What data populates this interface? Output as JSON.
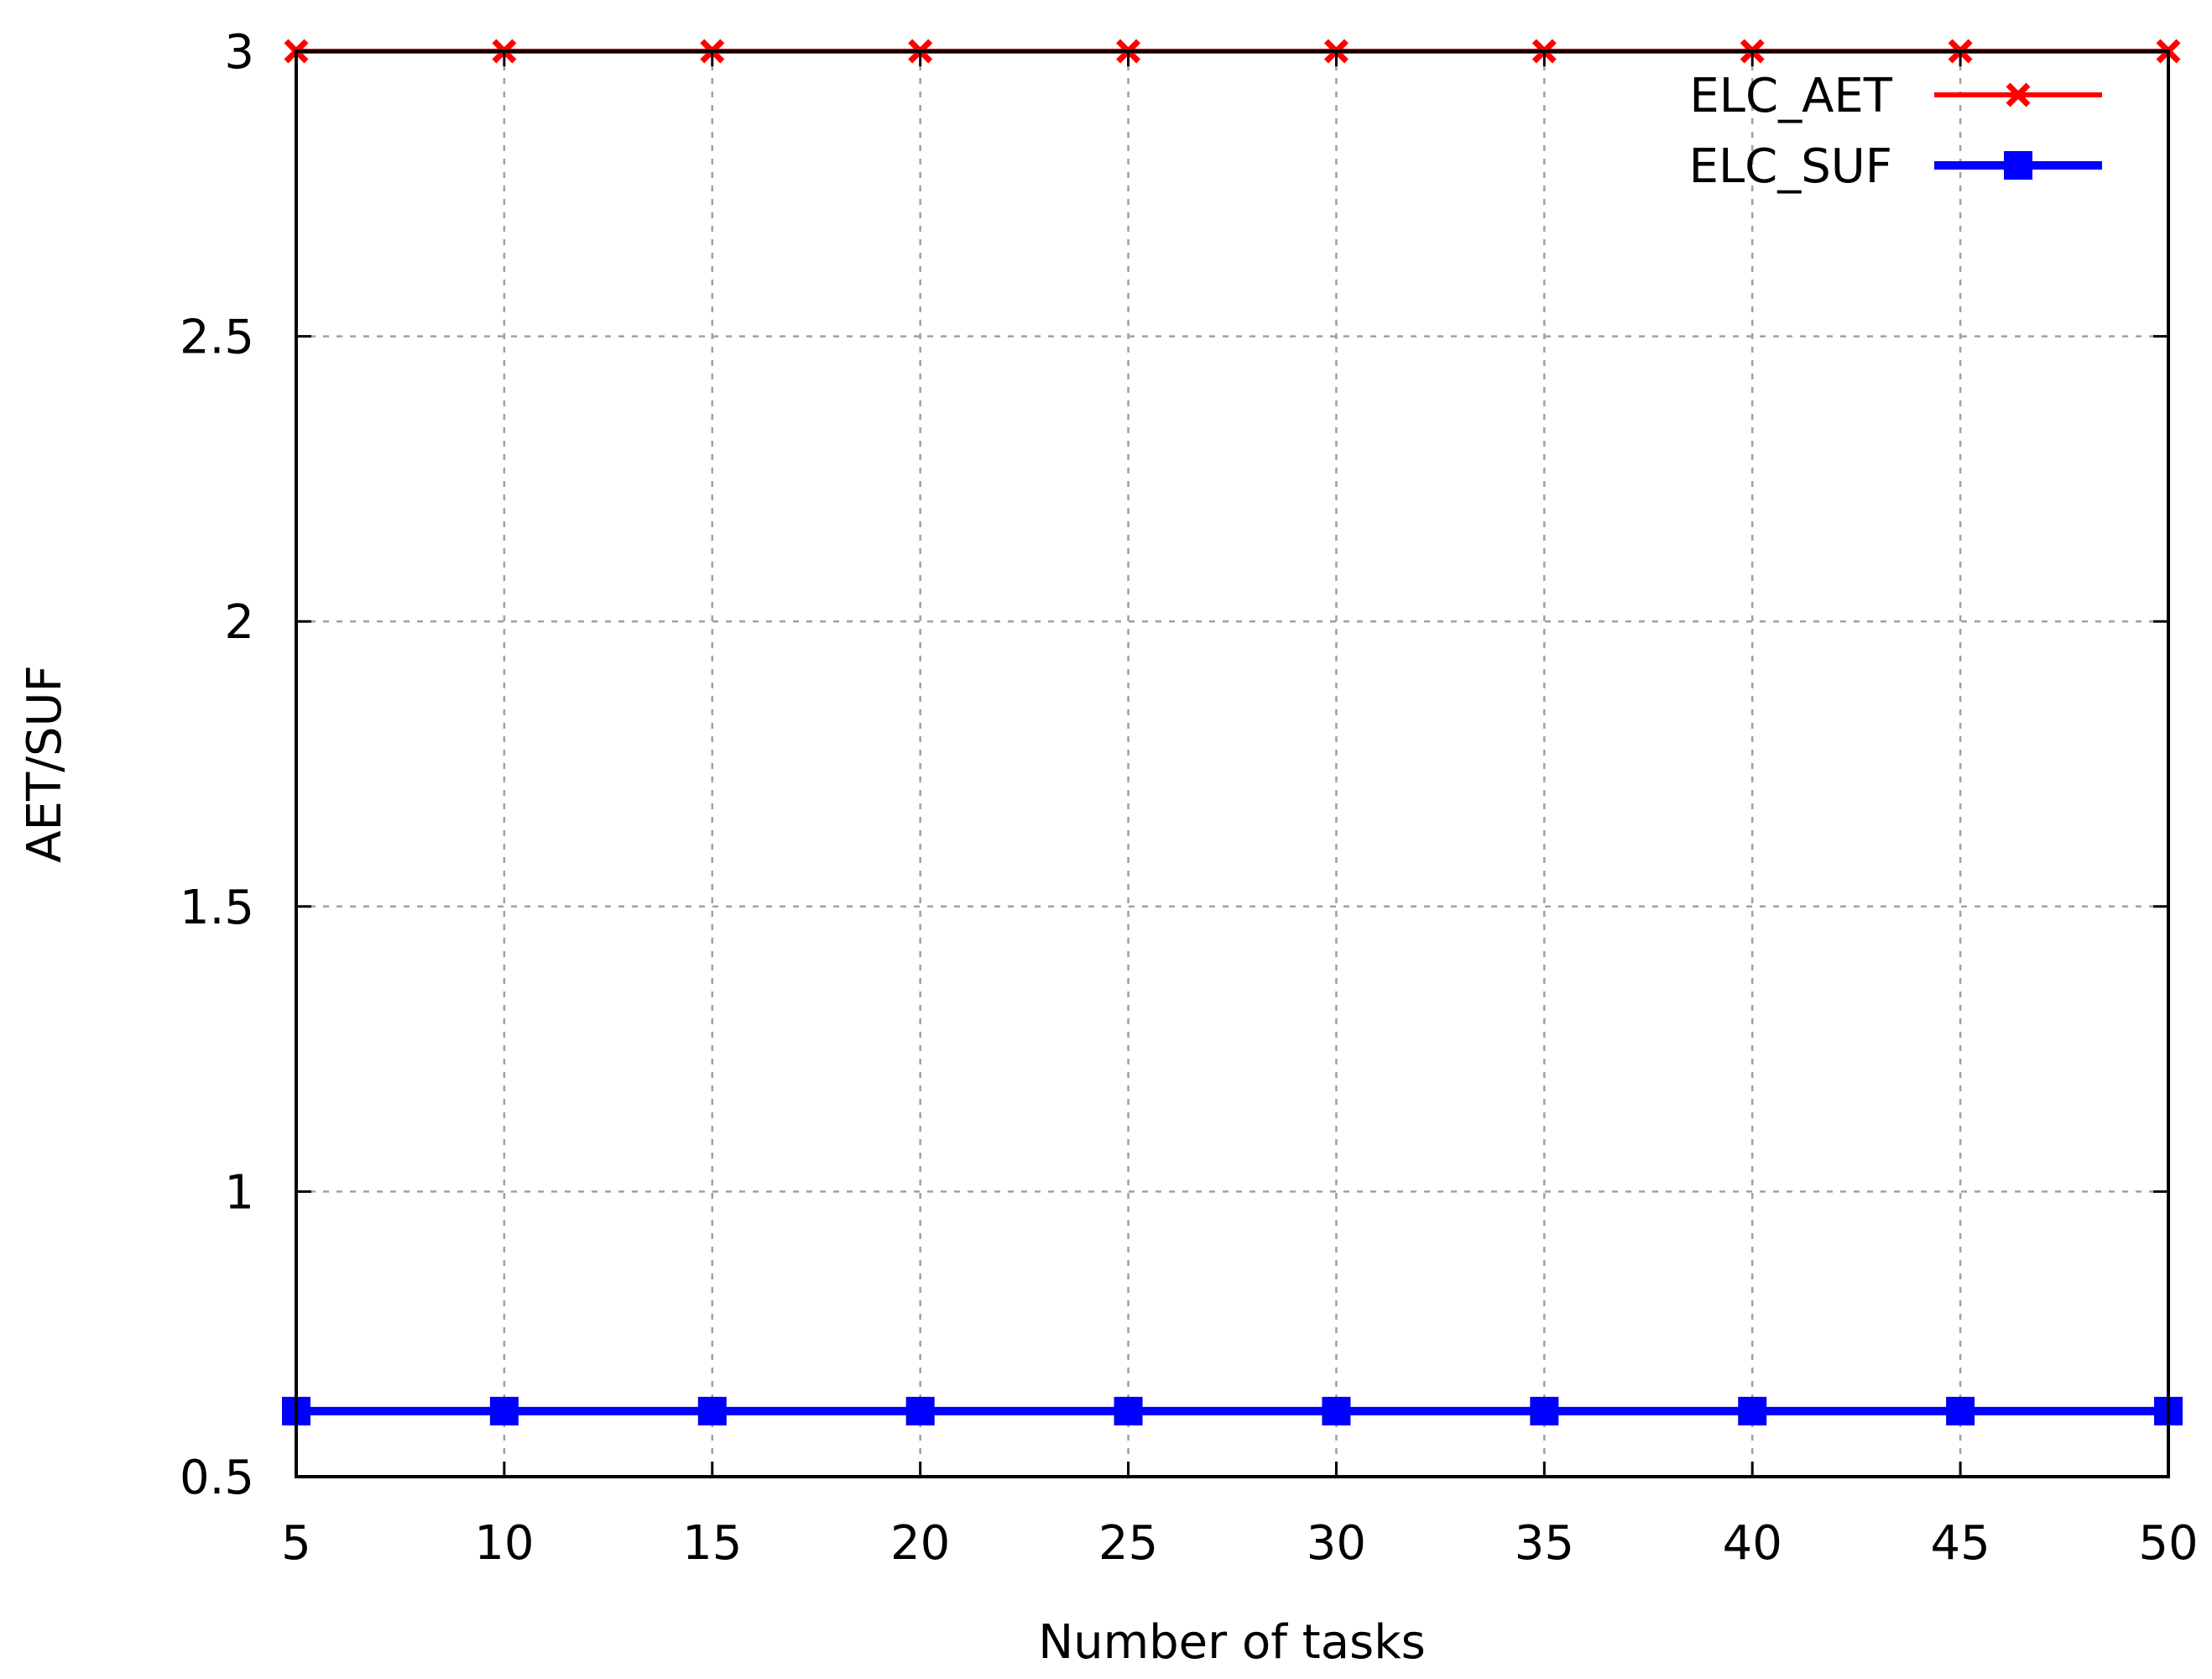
{
  "chart_data": {
    "type": "line",
    "title": "",
    "xlabel": "Number of tasks",
    "ylabel": "AET/SUF",
    "x": [
      5,
      10,
      15,
      20,
      25,
      30,
      35,
      40,
      45,
      50
    ],
    "xlim": [
      5,
      50
    ],
    "ylim": [
      0.5,
      3
    ],
    "x_ticks": [
      {
        "value": 5,
        "label": "5"
      },
      {
        "value": 10,
        "label": "10"
      },
      {
        "value": 15,
        "label": "15"
      },
      {
        "value": 20,
        "label": "20"
      },
      {
        "value": 25,
        "label": "25"
      },
      {
        "value": 30,
        "label": "30"
      },
      {
        "value": 35,
        "label": "35"
      },
      {
        "value": 40,
        "label": "40"
      },
      {
        "value": 45,
        "label": "45"
      },
      {
        "value": 50,
        "label": "50"
      }
    ],
    "y_ticks": [
      {
        "value": 0.5,
        "label": "0.5"
      },
      {
        "value": 1,
        "label": "1"
      },
      {
        "value": 1.5,
        "label": "1.5"
      },
      {
        "value": 2,
        "label": "2"
      },
      {
        "value": 2.5,
        "label": "2.5"
      },
      {
        "value": 3,
        "label": "3"
      }
    ],
    "grid": true,
    "legend_position": "top-right",
    "series": [
      {
        "name": "ELC_AET",
        "color": "#ff0000",
        "marker": "x",
        "values": [
          3,
          3,
          3,
          3,
          3,
          3,
          3,
          3,
          3,
          3
        ]
      },
      {
        "name": "ELC_SUF",
        "color": "#0000ff",
        "marker": "square",
        "values": [
          0.615,
          0.615,
          0.615,
          0.615,
          0.615,
          0.615,
          0.615,
          0.615,
          0.615,
          0.615
        ]
      }
    ]
  }
}
